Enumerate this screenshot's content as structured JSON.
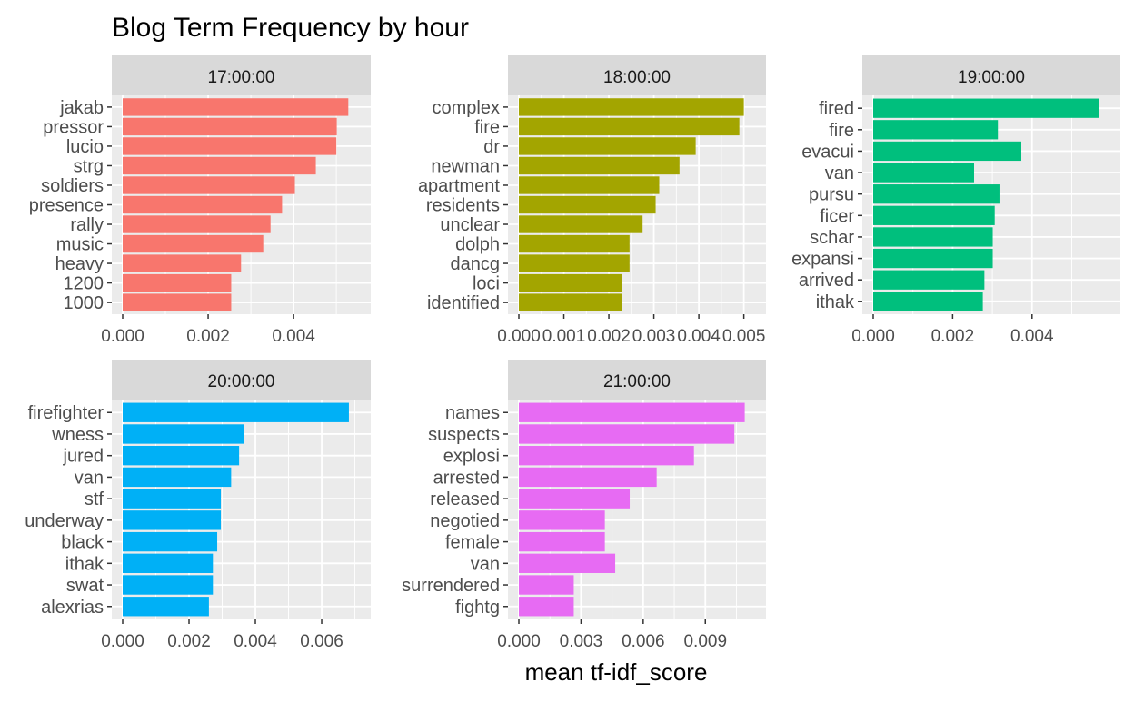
{
  "chart_data": {
    "type": "bar",
    "orientation": "horizontal",
    "title": "Blog Term Frequency by hour",
    "xlabel": "mean tf-idf_score",
    "ylabel": "",
    "grid": true,
    "legend": "none",
    "panels": [
      {
        "facet": "17:00:00",
        "color": "#F8766D",
        "xlim": [
          0,
          0.00555
        ],
        "ticks": [
          0,
          0.002,
          0.004
        ],
        "tick_labels": [
          "0.000",
          "0.002",
          "0.004"
        ],
        "categories": [
          "jakab",
          "pressor",
          "lucio",
          "strg",
          "soldiers",
          "presence",
          "rally",
          "music",
          "heavy",
          "1200",
          "1000"
        ],
        "values": [
          0.00528,
          0.00501,
          0.005,
          0.00452,
          0.00403,
          0.00373,
          0.00346,
          0.00329,
          0.00277,
          0.00254,
          0.00254
        ]
      },
      {
        "facet": "18:00:00",
        "color": "#A3A500",
        "xlim": [
          0,
          0.00525
        ],
        "ticks": [
          0,
          0.001,
          0.002,
          0.003,
          0.004,
          0.005
        ],
        "tick_labels": [
          "0.000",
          "0.001",
          "0.002",
          "0.003",
          "0.004",
          "0.005"
        ],
        "categories": [
          "complex",
          "fire",
          "dr",
          "newman",
          "apartment",
          "residents",
          "unclear",
          "dolph",
          "dancg",
          "loci",
          "identified"
        ],
        "values": [
          0.005,
          0.0049,
          0.00393,
          0.00357,
          0.00312,
          0.00304,
          0.00275,
          0.00246,
          0.00246,
          0.0023,
          0.0023
        ]
      },
      {
        "facet": "19:00:00",
        "color": "#00BF7D",
        "xlim": [
          0,
          0.00595
        ],
        "ticks": [
          0,
          0.002,
          0.004
        ],
        "tick_labels": [
          "0.000",
          "0.002",
          "0.004"
        ],
        "categories": [
          "fired",
          "fire",
          "evacui",
          "van",
          "pursu",
          "ficer",
          "schar",
          "expansi",
          "arrived",
          "ithak"
        ],
        "values": [
          0.00568,
          0.00314,
          0.00373,
          0.00254,
          0.00318,
          0.00306,
          0.00301,
          0.00301,
          0.0028,
          0.00276
        ]
      },
      {
        "facet": "20:00:00",
        "color": "#00B0F6",
        "xlim": [
          0,
          0.00715
        ],
        "ticks": [
          0,
          0.002,
          0.004,
          0.006
        ],
        "tick_labels": [
          "0.000",
          "0.002",
          "0.004",
          "0.006"
        ],
        "categories": [
          "firefighter",
          "wness",
          "jured",
          "van",
          "stf",
          "underway",
          "black",
          "ithak",
          "swat",
          "alexrias"
        ],
        "values": [
          0.00682,
          0.00366,
          0.00351,
          0.00327,
          0.00296,
          0.00296,
          0.00285,
          0.00272,
          0.00272,
          0.0026
        ]
      },
      {
        "facet": "21:00:00",
        "color": "#E76BF3",
        "xlim": [
          0,
          0.0114
        ],
        "ticks": [
          0,
          0.003,
          0.006,
          0.009
        ],
        "tick_labels": [
          "0.000",
          "0.003",
          "0.006",
          "0.009"
        ],
        "categories": [
          "names",
          "suspects",
          "explosi",
          "arrested",
          "released",
          "negotied",
          "female",
          "van",
          "surrendered",
          "fightg"
        ],
        "values": [
          0.0109,
          0.0104,
          0.00845,
          0.00665,
          0.00535,
          0.00415,
          0.00415,
          0.00465,
          0.00265,
          0.00265
        ]
      }
    ]
  }
}
